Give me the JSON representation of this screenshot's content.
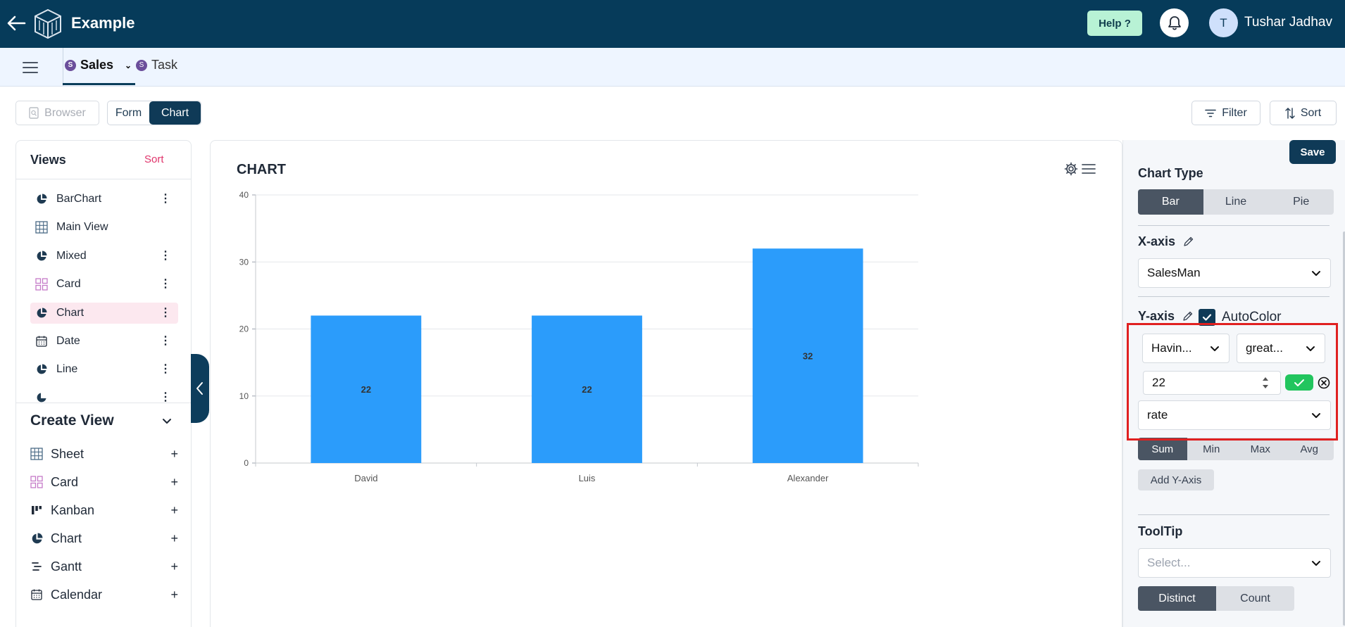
{
  "app": {
    "title": "Example",
    "help_label": "Help ?",
    "user_initial": "T",
    "user_name": "Tushar Jadhav"
  },
  "tabs": [
    {
      "label": "Sales",
      "badge": "S",
      "active": true
    },
    {
      "label": "Task",
      "badge": "S",
      "active": false
    }
  ],
  "toolbar": {
    "browser_label": "Browser",
    "form_label": "Form",
    "chart_label": "Chart",
    "filter_label": "Filter",
    "sort_label": "Sort"
  },
  "views": {
    "title": "Views",
    "sort_label": "Sort",
    "items": [
      {
        "label": "BarChart",
        "icon": "pie-chart-icon"
      },
      {
        "label": "Main View",
        "icon": "grid-icon"
      },
      {
        "label": "Mixed",
        "icon": "pie-chart-icon"
      },
      {
        "label": "Card",
        "icon": "card-grid-icon"
      },
      {
        "label": "Chart",
        "icon": "pie-chart-icon",
        "active": true
      },
      {
        "label": "Date",
        "icon": "calendar-icon"
      },
      {
        "label": "Line",
        "icon": "pie-chart-icon"
      }
    ]
  },
  "create_view": {
    "title": "Create View",
    "items": [
      {
        "label": "Sheet",
        "icon": "grid-icon"
      },
      {
        "label": "Card",
        "icon": "card-grid-icon"
      },
      {
        "label": "Kanban",
        "icon": "kanban-icon"
      },
      {
        "label": "Chart",
        "icon": "pie-chart-icon"
      },
      {
        "label": "Gantt",
        "icon": "gantt-icon"
      },
      {
        "label": "Calendar",
        "icon": "calendar-icon"
      }
    ]
  },
  "chart_panel": {
    "title": "CHART"
  },
  "chart_data": {
    "type": "bar",
    "categories": [
      "David",
      "Luis",
      "Alexander"
    ],
    "values": [
      22,
      22,
      32
    ],
    "data_labels": [
      "22",
      "22",
      "32"
    ],
    "ylim": [
      0,
      40
    ],
    "yticks": [
      "0",
      "10",
      "20",
      "30",
      "40"
    ],
    "grid": true,
    "bar_color": "#2b9cfb"
  },
  "settings": {
    "save_label": "Save",
    "chart_type_label": "Chart Type",
    "chart_types": [
      "Bar",
      "Line",
      "Pie"
    ],
    "x_axis_label": "X-axis",
    "x_axis_value": "SalesMan",
    "y_axis_label": "Y-axis",
    "autocolor_label": "AutoColor",
    "having_value": "Havin...",
    "operator_value": "great...",
    "threshold_value": "22",
    "field_value": "rate",
    "aggregations": [
      "Sum",
      "Min",
      "Max",
      "Avg"
    ],
    "add_y_label": "Add Y-Axis",
    "tooltip_label": "ToolTip",
    "tooltip_placeholder": "Select...",
    "distinct_options": [
      "Distinct",
      "Count"
    ]
  },
  "colors": {
    "topbar": "#063b5a",
    "accent": "#0f3a57",
    "bar": "#2b9cfb",
    "highlight": "#e02020",
    "confirm": "#22c55e",
    "sort_link": "#e0356c"
  }
}
